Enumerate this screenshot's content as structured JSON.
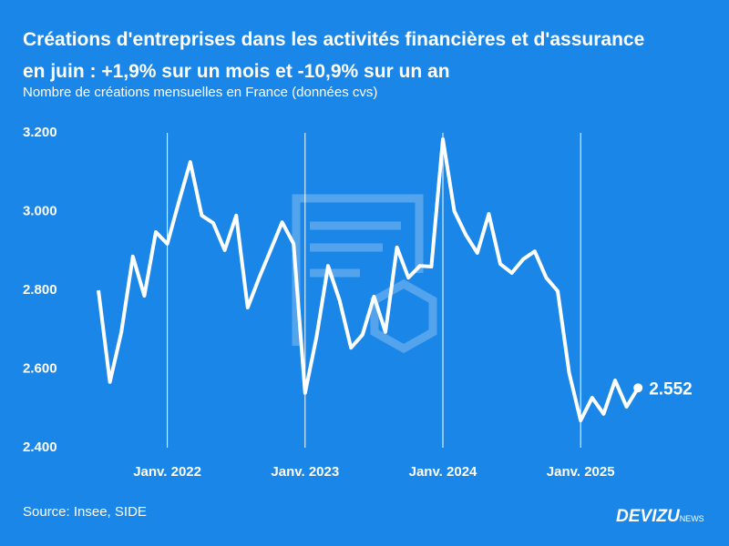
{
  "chart_data": {
    "type": "line",
    "title": "Créations d'entreprises dans les activités financières et d'assurance en juin : +1,9% sur un mois et -10,9% sur un an",
    "subtitle": "Nombre de créations mensuelles en France (données cvs)",
    "source": "Source: Insee, SIDE",
    "brand": "DEVIZU",
    "brand_suffix": "NEWS",
    "categories": [
      null,
      null,
      null,
      null,
      null,
      null,
      "Janv. 2022",
      null,
      null,
      null,
      null,
      null,
      null,
      null,
      null,
      null,
      null,
      null,
      "Janv. 2023",
      null,
      null,
      null,
      null,
      null,
      null,
      null,
      null,
      null,
      null,
      null,
      "Janv. 2024",
      null,
      null,
      null,
      null,
      null,
      null,
      null,
      null,
      null,
      null,
      null,
      "Janv. 2025",
      null,
      null,
      null,
      null,
      null
    ],
    "series": [
      {
        "color": "#ffffff",
        "values": [
          2800,
          2567,
          2694,
          2886,
          2786,
          2948,
          2918,
          3024,
          3126,
          2990,
          2971,
          2902,
          2990,
          2756,
          2832,
          2902,
          2973,
          2918,
          2539,
          2682,
          2862,
          2775,
          2654,
          2687,
          2784,
          2694,
          2909,
          2832,
          2862,
          2860,
          3184,
          3001,
          2941,
          2895,
          2994,
          2867,
          2844,
          2879,
          2899,
          2832,
          2798,
          2590,
          2469,
          2527,
          2486,
          2571,
          2504,
          2552
        ],
        "value_labels": [
          null,
          null,
          null,
          null,
          null,
          null,
          null,
          null,
          null,
          null,
          null,
          null,
          null,
          null,
          null,
          null,
          null,
          null,
          null,
          null,
          null,
          null,
          null,
          null,
          null,
          null,
          null,
          null,
          null,
          null,
          null,
          null,
          null,
          null,
          null,
          null,
          null,
          null,
          null,
          null,
          null,
          null,
          null,
          null,
          null,
          null,
          null,
          "2.552"
        ]
      }
    ],
    "ylim": [
      2400,
      3200
    ],
    "yticks": [
      {
        "value": 2400,
        "label": "2.400"
      },
      {
        "value": 2600,
        "label": "2.600"
      },
      {
        "value": 2800,
        "label": "2.800"
      },
      {
        "value": 3000,
        "label": "3.000"
      },
      {
        "value": 3200,
        "label": "3.200"
      }
    ],
    "grid": "x"
  }
}
